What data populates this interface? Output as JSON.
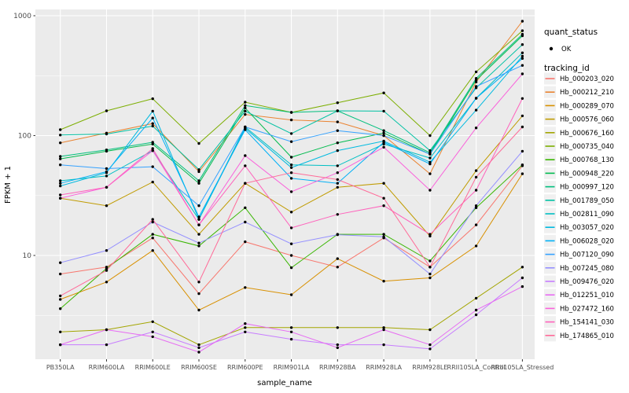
{
  "figure": {
    "background": "#FFFFFF",
    "panel_color": "#EBEBEB",
    "grid_color": "#FFFFFF",
    "axis_text_color": "#4D4D4D",
    "tick_color": "#333333",
    "point_color": "#000000",
    "legend_key_color": "#F0F0F0"
  },
  "axes": {
    "x_label": "sample_name",
    "y_label": "FPKM + 1",
    "y_tick_labels": [
      "1000",
      "100",
      "10"
    ],
    "y_tick_values": [
      1000,
      100,
      10
    ]
  },
  "legend": {
    "quant_status": {
      "title": "quant_status",
      "items": [
        {
          "label": "OK",
          "symbol": "black-point"
        }
      ]
    },
    "tracking_id": {
      "title": "tracking_id"
    }
  },
  "chart_data": {
    "type": "line",
    "title": "",
    "xlabel": "sample_name",
    "ylabel": "FPKM + 1",
    "y_scale": "log10",
    "ylim": [
      1.35,
      1150
    ],
    "grid": "on",
    "legend_position": "right",
    "point_shape": "small black dot (quant_status OK)",
    "categories": [
      "PB350LA",
      "RRIM600LA",
      "RRIM600LE",
      "RRIM600SE",
      "RRIM600PE",
      "RRIM901LA",
      "RRIM928BA",
      "RRIM928LA",
      "RRIM928LE",
      "RRII105LA_Control",
      "RRII105LA_Stressed"
    ],
    "series": [
      {
        "name": "Hb_000203_020",
        "color": "#F8766D",
        "values": [
          7,
          8,
          14,
          4.8,
          13,
          10,
          8,
          14,
          8,
          18,
          56
        ]
      },
      {
        "name": "Hb_000212_210",
        "color": "#EA8331",
        "values": [
          87,
          105,
          126,
          50,
          150,
          135,
          130,
          100,
          48,
          280,
          900
        ]
      },
      {
        "name": "Hb_000289_070",
        "color": "#D89000",
        "values": [
          4.3,
          6,
          11,
          3.5,
          5.4,
          4.7,
          9.4,
          6.1,
          6.5,
          12,
          48
        ]
      },
      {
        "name": "Hb_000576_060",
        "color": "#C09B00",
        "values": [
          30,
          26,
          41,
          15,
          40,
          23,
          37,
          40,
          14.5,
          51,
          146
        ]
      },
      {
        "name": "Hb_000676_160",
        "color": "#A3A500",
        "values": [
          2.3,
          2.4,
          2.8,
          1.8,
          2.5,
          2.5,
          2.5,
          2.5,
          2.4,
          4.4,
          8
        ]
      },
      {
        "name": "Hb_000735_040",
        "color": "#7CAE00",
        "values": [
          112,
          161,
          203,
          86,
          190,
          156,
          188,
          227,
          100,
          340,
          750
        ]
      },
      {
        "name": "Hb_000768_130",
        "color": "#39B600",
        "values": [
          3.6,
          7.8,
          15,
          12,
          25,
          7.9,
          15,
          15,
          9,
          25,
          57
        ]
      },
      {
        "name": "Hb_000948_220",
        "color": "#00BB4E",
        "values": [
          64,
          74,
          85,
          40,
          170,
          66,
          87,
          105,
          70,
          290,
          680
        ]
      },
      {
        "name": "Hb_000997_120",
        "color": "#00BF7D",
        "values": [
          67,
          76,
          88,
          42,
          178,
          156,
          161,
          110,
          72,
          300,
          700
        ]
      },
      {
        "name": "Hb_001789_050",
        "color": "#00C1A3",
        "values": [
          101,
          103,
          120,
          52,
          160,
          104,
          161,
          160,
          75,
          250,
          575
        ]
      },
      {
        "name": "Hb_002811_090",
        "color": "#00BFC4",
        "values": [
          42,
          46,
          75,
          20,
          118,
          57,
          56,
          85,
          65,
          205,
          490
        ]
      },
      {
        "name": "Hb_003057_020",
        "color": "#00BAE0",
        "values": [
          38,
          49,
          160,
          20,
          115,
          54,
          75,
          90,
          60,
          163,
          460
        ]
      },
      {
        "name": "Hb_006028_020",
        "color": "#00B0F6",
        "values": [
          40,
          50,
          140,
          21,
          112,
          44,
          40,
          88,
          58,
          205,
          440
        ]
      },
      {
        "name": "Hb_007120_090",
        "color": "#35A2FF",
        "values": [
          57,
          53,
          55,
          26,
          118,
          89,
          110,
          100,
          70,
          257,
          385
        ]
      },
      {
        "name": "Hb_007245_080",
        "color": "#9590FF",
        "values": [
          8.7,
          11,
          19,
          12.7,
          19,
          12.5,
          14.9,
          14.3,
          7,
          26,
          74
        ]
      },
      {
        "name": "Hb_009476_020",
        "color": "#C77CFF",
        "values": [
          1.8,
          1.8,
          2.3,
          1.7,
          2.3,
          2.0,
          1.8,
          1.8,
          1.66,
          3.2,
          6.5
        ]
      },
      {
        "name": "Hb_012251_010",
        "color": "#E76BF3",
        "values": [
          1.8,
          2.4,
          2.1,
          1.56,
          2.7,
          2.3,
          1.7,
          2.4,
          1.8,
          3.5,
          5.5
        ]
      },
      {
        "name": "Hb_027472_160",
        "color": "#FA62DB",
        "values": [
          30,
          37,
          75,
          18,
          68,
          34,
          49,
          80,
          35,
          116,
          327
        ]
      },
      {
        "name": "Hb_154141_030",
        "color": "#FF62BC",
        "values": [
          32,
          37,
          78,
          18,
          56,
          17,
          22,
          26,
          15,
          35,
          204
        ]
      },
      {
        "name": "Hb_174865_010",
        "color": "#FF6A98",
        "values": [
          4.6,
          7.5,
          20,
          6,
          40,
          49,
          43,
          30,
          8,
          45,
          118
        ]
      }
    ]
  }
}
